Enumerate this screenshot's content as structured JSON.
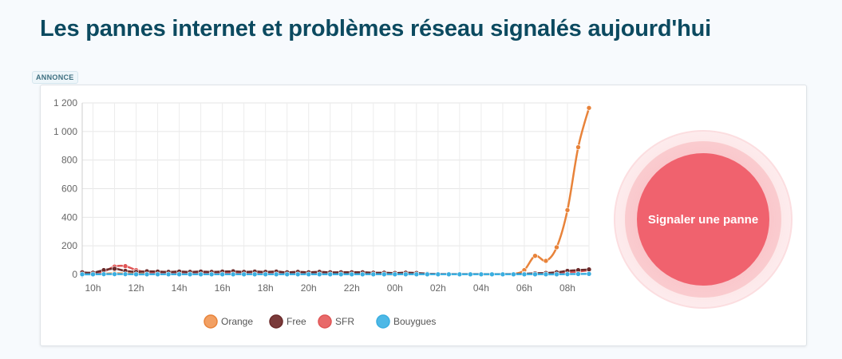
{
  "page": {
    "title": "Les pannes internet et problèmes réseau signalés aujourd'hui",
    "ad_label": "ANNONCE"
  },
  "report_button": {
    "label": "Signaler une panne",
    "color": "#f0626e"
  },
  "chart_data": {
    "type": "line",
    "title": "",
    "xlabel": "",
    "ylabel": "",
    "ylim": [
      0,
      1200
    ],
    "y_ticks": [
      0,
      200,
      400,
      600,
      800,
      1000,
      1200
    ],
    "y_tick_labels": [
      "0",
      "200",
      "400",
      "600",
      "800",
      "1 000",
      "1 200"
    ],
    "x_range_hours": [
      9.5,
      33
    ],
    "x_tick_labels": [
      "10h",
      "12h",
      "14h",
      "16h",
      "18h",
      "20h",
      "22h",
      "00h",
      "02h",
      "04h",
      "06h",
      "08h"
    ],
    "x_tick_hours": [
      10,
      12,
      14,
      16,
      18,
      20,
      22,
      24,
      26,
      28,
      30,
      32
    ],
    "grid": true,
    "legend_position": "bottom",
    "x": [
      9.5,
      10,
      10.5,
      11,
      11.5,
      12,
      12.5,
      13,
      13.5,
      14,
      14.5,
      15,
      15.5,
      16,
      16.5,
      17,
      17.5,
      18,
      18.5,
      19,
      19.5,
      20,
      20.5,
      21,
      21.5,
      22,
      22.5,
      23,
      23.5,
      24,
      24.5,
      25,
      25.5,
      26,
      26.5,
      27,
      27.5,
      28,
      28.5,
      29,
      29.5,
      30,
      30.5,
      31,
      31.5,
      32,
      32.5,
      33
    ],
    "series": [
      {
        "name": "Orange",
        "color": "#e8833a",
        "values": [
          2,
          3,
          5,
          8,
          6,
          5,
          4,
          4,
          4,
          3,
          3,
          3,
          3,
          4,
          3,
          3,
          3,
          2,
          3,
          2,
          2,
          2,
          2,
          2,
          2,
          2,
          2,
          2,
          1,
          1,
          1,
          1,
          1,
          1,
          1,
          1,
          1,
          1,
          1,
          2,
          3,
          30,
          130,
          95,
          190,
          450,
          890,
          1165
        ]
      },
      {
        "name": "Free",
        "color": "#6b2a2a",
        "values": [
          15,
          12,
          30,
          40,
          25,
          18,
          22,
          20,
          18,
          20,
          18,
          20,
          18,
          20,
          22,
          18,
          20,
          18,
          20,
          15,
          18,
          15,
          18,
          15,
          15,
          15,
          15,
          12,
          12,
          10,
          12,
          10,
          5,
          3,
          2,
          2,
          2,
          2,
          2,
          2,
          3,
          5,
          8,
          10,
          15,
          25,
          30,
          35
        ]
      },
      {
        "name": "SFR",
        "color": "#e05555",
        "values": [
          8,
          10,
          20,
          55,
          58,
          30,
          15,
          12,
          12,
          10,
          10,
          10,
          10,
          12,
          12,
          10,
          10,
          12,
          10,
          10,
          8,
          8,
          10,
          8,
          15,
          12,
          8,
          8,
          6,
          5,
          5,
          5,
          4,
          3,
          2,
          2,
          2,
          2,
          1,
          2,
          2,
          3,
          5,
          8,
          10,
          15,
          20,
          30
        ]
      },
      {
        "name": "Bouygues",
        "color": "#3aaee0",
        "values": [
          1,
          1,
          2,
          2,
          2,
          1,
          1,
          1,
          1,
          1,
          1,
          1,
          1,
          1,
          1,
          1,
          1,
          1,
          1,
          1,
          1,
          1,
          1,
          1,
          1,
          1,
          1,
          1,
          1,
          1,
          1,
          1,
          1,
          1,
          1,
          1,
          1,
          1,
          1,
          1,
          1,
          1,
          1,
          1,
          1,
          2,
          3,
          4
        ]
      }
    ]
  }
}
